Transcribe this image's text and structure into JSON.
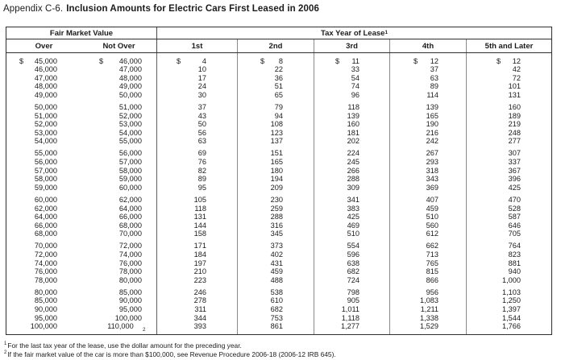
{
  "title": {
    "prefix": "Appendix C-6.",
    "main": "Inclusion Amounts for Electric Cars First Leased in 2006"
  },
  "table": {
    "header": {
      "fair_market_value": "Fair Market Value",
      "tax_year": "Tax Year of Lease",
      "tax_year_sup": "1",
      "columns": [
        "Over",
        "Not Over",
        "1st",
        "2nd",
        "3rd",
        "4th",
        "5th and Later"
      ]
    },
    "groups": [
      [
        [
          [
            "$",
            "45,000"
          ],
          [
            "$",
            "46,000"
          ],
          [
            "$",
            "4"
          ],
          [
            "$",
            "8"
          ],
          [
            "$",
            "11"
          ],
          [
            "$",
            "12"
          ],
          [
            "$",
            "12"
          ]
        ],
        [
          [
            "",
            "46,000"
          ],
          [
            "",
            "47,000"
          ],
          [
            "",
            "10"
          ],
          [
            "",
            "22"
          ],
          [
            "",
            "33"
          ],
          [
            "",
            "37"
          ],
          [
            "",
            "42"
          ]
        ],
        [
          [
            "",
            "47,000"
          ],
          [
            "",
            "48,000"
          ],
          [
            "",
            "17"
          ],
          [
            "",
            "36"
          ],
          [
            "",
            "54"
          ],
          [
            "",
            "63"
          ],
          [
            "",
            "72"
          ]
        ],
        [
          [
            "",
            "48,000"
          ],
          [
            "",
            "49,000"
          ],
          [
            "",
            "24"
          ],
          [
            "",
            "51"
          ],
          [
            "",
            "74"
          ],
          [
            "",
            "89"
          ],
          [
            "",
            "101"
          ]
        ],
        [
          [
            "",
            "49,000"
          ],
          [
            "",
            "50,000"
          ],
          [
            "",
            "30"
          ],
          [
            "",
            "65"
          ],
          [
            "",
            "96"
          ],
          [
            "",
            "114"
          ],
          [
            "",
            "131"
          ]
        ]
      ],
      [
        [
          [
            "",
            "50,000"
          ],
          [
            "",
            "51,000"
          ],
          [
            "",
            "37"
          ],
          [
            "",
            "79"
          ],
          [
            "",
            "118"
          ],
          [
            "",
            "139"
          ],
          [
            "",
            "160"
          ]
        ],
        [
          [
            "",
            "51,000"
          ],
          [
            "",
            "52,000"
          ],
          [
            "",
            "43"
          ],
          [
            "",
            "94"
          ],
          [
            "",
            "139"
          ],
          [
            "",
            "165"
          ],
          [
            "",
            "189"
          ]
        ],
        [
          [
            "",
            "52,000"
          ],
          [
            "",
            "53,000"
          ],
          [
            "",
            "50"
          ],
          [
            "",
            "108"
          ],
          [
            "",
            "160"
          ],
          [
            "",
            "190"
          ],
          [
            "",
            "219"
          ]
        ],
        [
          [
            "",
            "53,000"
          ],
          [
            "",
            "54,000"
          ],
          [
            "",
            "56"
          ],
          [
            "",
            "123"
          ],
          [
            "",
            "181"
          ],
          [
            "",
            "216"
          ],
          [
            "",
            "248"
          ]
        ],
        [
          [
            "",
            "54,000"
          ],
          [
            "",
            "55,000"
          ],
          [
            "",
            "63"
          ],
          [
            "",
            "137"
          ],
          [
            "",
            "202"
          ],
          [
            "",
            "242"
          ],
          [
            "",
            "277"
          ]
        ]
      ],
      [
        [
          [
            "",
            "55,000"
          ],
          [
            "",
            "56,000"
          ],
          [
            "",
            "69"
          ],
          [
            "",
            "151"
          ],
          [
            "",
            "224"
          ],
          [
            "",
            "267"
          ],
          [
            "",
            "307"
          ]
        ],
        [
          [
            "",
            "56,000"
          ],
          [
            "",
            "57,000"
          ],
          [
            "",
            "76"
          ],
          [
            "",
            "165"
          ],
          [
            "",
            "245"
          ],
          [
            "",
            "293"
          ],
          [
            "",
            "337"
          ]
        ],
        [
          [
            "",
            "57,000"
          ],
          [
            "",
            "58,000"
          ],
          [
            "",
            "82"
          ],
          [
            "",
            "180"
          ],
          [
            "",
            "266"
          ],
          [
            "",
            "318"
          ],
          [
            "",
            "367"
          ]
        ],
        [
          [
            "",
            "58,000"
          ],
          [
            "",
            "59,000"
          ],
          [
            "",
            "89"
          ],
          [
            "",
            "194"
          ],
          [
            "",
            "288"
          ],
          [
            "",
            "343"
          ],
          [
            "",
            "396"
          ]
        ],
        [
          [
            "",
            "59,000"
          ],
          [
            "",
            "60,000"
          ],
          [
            "",
            "95"
          ],
          [
            "",
            "209"
          ],
          [
            "",
            "309"
          ],
          [
            "",
            "369"
          ],
          [
            "",
            "425"
          ]
        ]
      ],
      [
        [
          [
            "",
            "60,000"
          ],
          [
            "",
            "62,000"
          ],
          [
            "",
            "105"
          ],
          [
            "",
            "230"
          ],
          [
            "",
            "341"
          ],
          [
            "",
            "407"
          ],
          [
            "",
            "470"
          ]
        ],
        [
          [
            "",
            "62,000"
          ],
          [
            "",
            "64,000"
          ],
          [
            "",
            "118"
          ],
          [
            "",
            "259"
          ],
          [
            "",
            "383"
          ],
          [
            "",
            "459"
          ],
          [
            "",
            "528"
          ]
        ],
        [
          [
            "",
            "64,000"
          ],
          [
            "",
            "66,000"
          ],
          [
            "",
            "131"
          ],
          [
            "",
            "288"
          ],
          [
            "",
            "425"
          ],
          [
            "",
            "510"
          ],
          [
            "",
            "587"
          ]
        ],
        [
          [
            "",
            "66,000"
          ],
          [
            "",
            "68,000"
          ],
          [
            "",
            "144"
          ],
          [
            "",
            "316"
          ],
          [
            "",
            "469"
          ],
          [
            "",
            "560"
          ],
          [
            "",
            "646"
          ]
        ],
        [
          [
            "",
            "68,000"
          ],
          [
            "",
            "70,000"
          ],
          [
            "",
            "158"
          ],
          [
            "",
            "345"
          ],
          [
            "",
            "510"
          ],
          [
            "",
            "612"
          ],
          [
            "",
            "705"
          ]
        ]
      ],
      [
        [
          [
            "",
            "70,000"
          ],
          [
            "",
            "72,000"
          ],
          [
            "",
            "171"
          ],
          [
            "",
            "373"
          ],
          [
            "",
            "554"
          ],
          [
            "",
            "662"
          ],
          [
            "",
            "764"
          ]
        ],
        [
          [
            "",
            "72,000"
          ],
          [
            "",
            "74,000"
          ],
          [
            "",
            "184"
          ],
          [
            "",
            "402"
          ],
          [
            "",
            "596"
          ],
          [
            "",
            "713"
          ],
          [
            "",
            "823"
          ]
        ],
        [
          [
            "",
            "74,000"
          ],
          [
            "",
            "76,000"
          ],
          [
            "",
            "197"
          ],
          [
            "",
            "431"
          ],
          [
            "",
            "638"
          ],
          [
            "",
            "765"
          ],
          [
            "",
            "881"
          ]
        ],
        [
          [
            "",
            "76,000"
          ],
          [
            "",
            "78,000"
          ],
          [
            "",
            "210"
          ],
          [
            "",
            "459"
          ],
          [
            "",
            "682"
          ],
          [
            "",
            "815"
          ],
          [
            "",
            "940"
          ]
        ],
        [
          [
            "",
            "78,000"
          ],
          [
            "",
            "80,000"
          ],
          [
            "",
            "223"
          ],
          [
            "",
            "488"
          ],
          [
            "",
            "724"
          ],
          [
            "",
            "866"
          ],
          [
            "",
            "1,000"
          ]
        ]
      ],
      [
        [
          [
            "",
            "80,000"
          ],
          [
            "",
            "85,000"
          ],
          [
            "",
            "246"
          ],
          [
            "",
            "538"
          ],
          [
            "",
            "798"
          ],
          [
            "",
            "956"
          ],
          [
            "",
            "1,103"
          ]
        ],
        [
          [
            "",
            "85,000"
          ],
          [
            "",
            "90,000"
          ],
          [
            "",
            "278"
          ],
          [
            "",
            "610"
          ],
          [
            "",
            "905"
          ],
          [
            "",
            "1,083"
          ],
          [
            "",
            "1,250"
          ]
        ],
        [
          [
            "",
            "90,000"
          ],
          [
            "",
            "95,000"
          ],
          [
            "",
            "311"
          ],
          [
            "",
            "682"
          ],
          [
            "",
            "1,011"
          ],
          [
            "",
            "1,211"
          ],
          [
            "",
            "1,397"
          ]
        ],
        [
          [
            "",
            "95,000"
          ],
          [
            "",
            "100,000"
          ],
          [
            "",
            "344"
          ],
          [
            "",
            "753"
          ],
          [
            "",
            "1,118"
          ],
          [
            "",
            "1,338"
          ],
          [
            "",
            "1,544"
          ]
        ],
        [
          [
            "",
            "100,000"
          ],
          [
            "",
            "110,000",
            "2"
          ],
          [
            "",
            "393"
          ],
          [
            "",
            "861"
          ],
          [
            "",
            "1,277"
          ],
          [
            "",
            "1,529"
          ],
          [
            "",
            "1,766"
          ]
        ]
      ]
    ]
  },
  "footnotes": [
    {
      "sup": "1",
      "text": "For the last tax year of the lease, use the dollar amount for the preceding year."
    },
    {
      "sup": "2",
      "text": "If the fair market value of the car is more than $100,000, see Revenue Procedure 2006-18 (2006-12 IRB 645)."
    }
  ]
}
